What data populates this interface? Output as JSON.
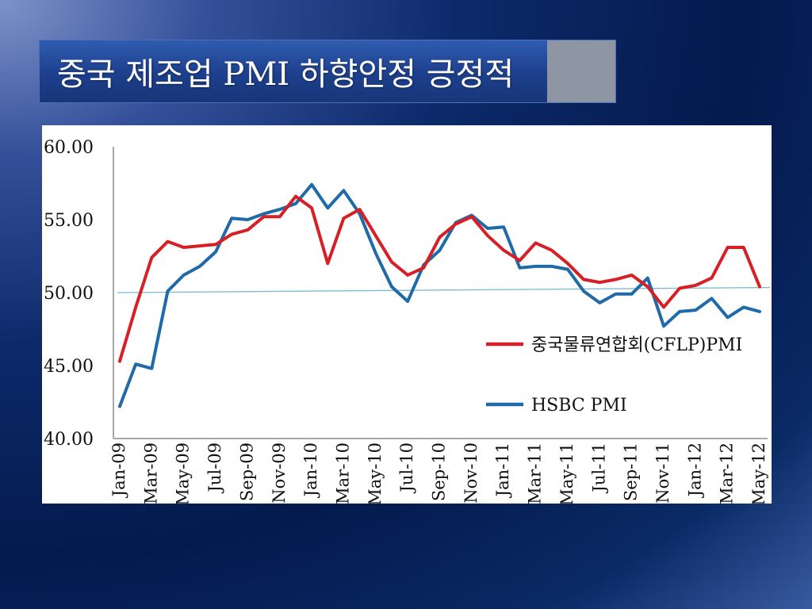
{
  "slide": {
    "title": "중국 제조업 PMI 하향안정 긍정적"
  },
  "colors": {
    "cflp": "#d71f26",
    "hsbc": "#1f6aa8",
    "reference_line": "#7fbcd0",
    "axis": "#a8a8a8"
  },
  "chart_data": {
    "type": "line",
    "ylim": [
      40,
      60
    ],
    "yticks": [
      "40.00",
      "45.00",
      "50.00",
      "55.00",
      "60.00"
    ],
    "ytick_values": [
      40,
      45,
      50,
      55,
      60
    ],
    "x": [
      "Jan-09",
      "Feb-09",
      "Mar-09",
      "Apr-09",
      "May-09",
      "Jun-09",
      "Jul-09",
      "Aug-09",
      "Sep-09",
      "Oct-09",
      "Nov-09",
      "Dec-09",
      "Jan-10",
      "Feb-10",
      "Mar-10",
      "Apr-10",
      "May-10",
      "Jun-10",
      "Jul-10",
      "Aug-10",
      "Sep-10",
      "Oct-10",
      "Nov-10",
      "Dec-10",
      "Jan-11",
      "Feb-11",
      "Mar-11",
      "Apr-11",
      "May-11",
      "Jun-11",
      "Jul-11",
      "Aug-11",
      "Sep-11",
      "Oct-11",
      "Nov-11",
      "Dec-11",
      "Jan-12",
      "Feb-12",
      "Mar-12",
      "Apr-12",
      "May-12"
    ],
    "xtick_labels": [
      "Jan-09",
      "Mar-09",
      "May-09",
      "Jul-09",
      "Sep-09",
      "Nov-09",
      "Jan-10",
      "Mar-10",
      "May-10",
      "Jul-10",
      "Sep-10",
      "Nov-10",
      "Jan-11",
      "Mar-11",
      "May-11",
      "Jul-11",
      "Sep-11",
      "Nov-11",
      "Jan-12",
      "Mar-12",
      "May-12"
    ],
    "series": [
      {
        "name": "중국물류연합회(CFLP)PMI",
        "color": "#d71f26",
        "values": [
          45.3,
          49.0,
          52.4,
          53.5,
          53.1,
          53.2,
          53.3,
          54.0,
          54.3,
          55.2,
          55.2,
          56.6,
          55.8,
          52.0,
          55.1,
          55.7,
          53.9,
          52.1,
          51.2,
          51.7,
          53.8,
          54.7,
          55.2,
          53.9,
          52.9,
          52.2,
          53.4,
          52.9,
          52.0,
          50.9,
          50.7,
          50.9,
          51.2,
          50.4,
          49.0,
          50.3,
          50.5,
          51.0,
          53.1,
          53.1,
          50.4
        ]
      },
      {
        "name": "HSBC PMI",
        "color": "#1f6aa8",
        "values": [
          42.2,
          45.1,
          44.8,
          50.1,
          51.2,
          51.8,
          52.8,
          55.1,
          55.0,
          55.4,
          55.7,
          56.1,
          57.4,
          55.8,
          57.0,
          55.4,
          52.7,
          50.4,
          49.4,
          51.9,
          52.9,
          54.8,
          55.3,
          54.4,
          54.5,
          51.7,
          51.8,
          51.8,
          51.6,
          50.1,
          49.3,
          49.9,
          49.9,
          51.0,
          47.7,
          48.7,
          48.8,
          49.6,
          48.3,
          49.0,
          48.7
        ]
      }
    ],
    "reference_line": {
      "from": 50.0,
      "to": 50.35
    }
  }
}
